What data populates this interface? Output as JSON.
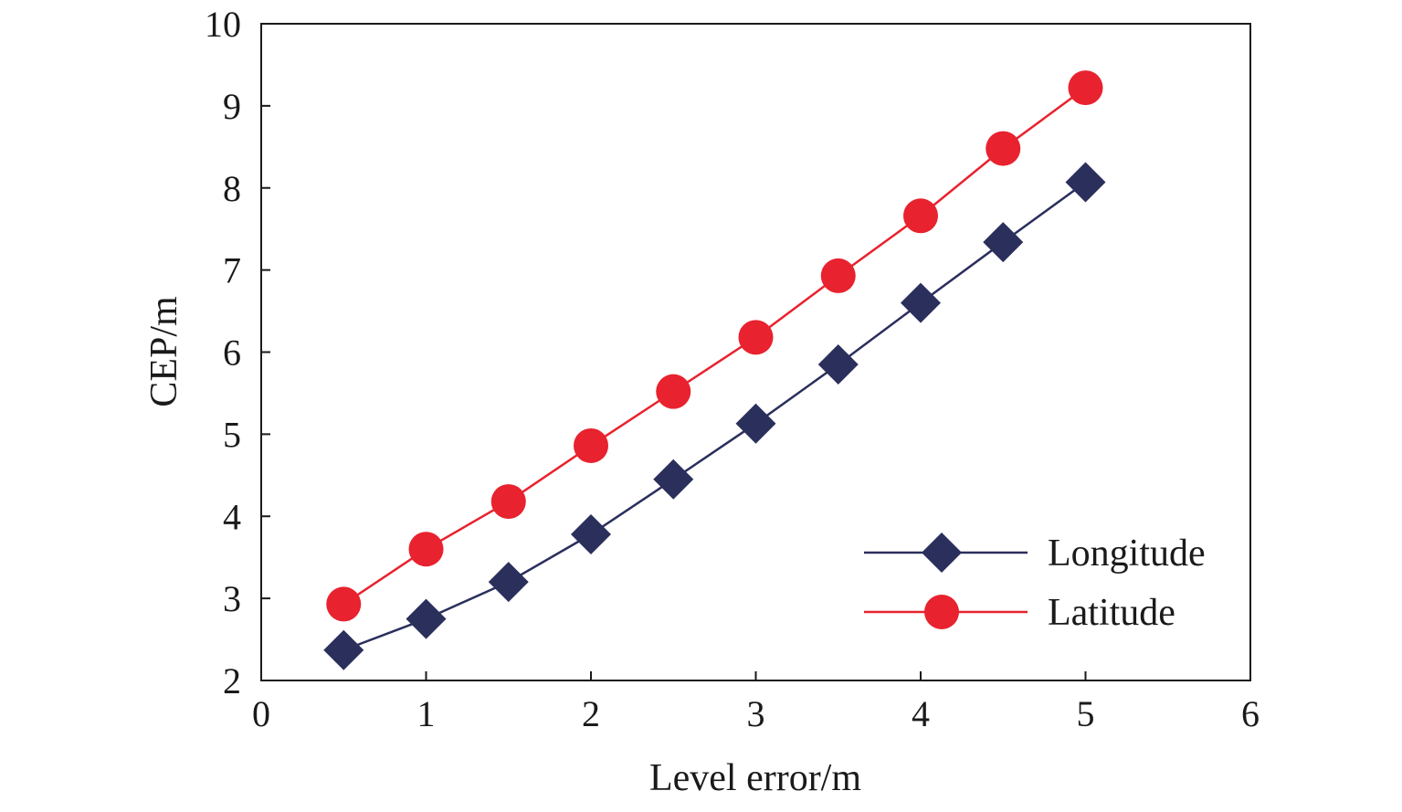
{
  "chart_data": {
    "type": "line",
    "title": "",
    "xlabel": "Level error/m",
    "ylabel": "CEP/m",
    "xlim": [
      0,
      6
    ],
    "ylim": [
      2,
      10
    ],
    "xticks": [
      "0",
      "1",
      "2",
      "3",
      "4",
      "5",
      "6"
    ],
    "yticks": [
      "2",
      "3",
      "4",
      "5",
      "6",
      "7",
      "8",
      "9",
      "10"
    ],
    "grid": false,
    "legend_position": "bottom-right",
    "series": [
      {
        "name": "Longitude",
        "color": "#2b2f5c",
        "marker": "diamond",
        "x": [
          0.5,
          1.0,
          1.5,
          2.0,
          2.5,
          3.0,
          3.5,
          4.0,
          4.5,
          5.0
        ],
        "y": [
          2.37,
          2.75,
          3.2,
          3.78,
          4.45,
          5.13,
          5.85,
          6.6,
          7.34,
          8.07
        ]
      },
      {
        "name": "Latitude",
        "color": "#e8222e",
        "marker": "circle",
        "x": [
          0.5,
          1.0,
          1.5,
          2.0,
          2.5,
          3.0,
          3.5,
          4.0,
          4.5,
          5.0
        ],
        "y": [
          2.93,
          3.6,
          4.18,
          4.86,
          5.52,
          6.18,
          6.93,
          7.66,
          8.48,
          9.22
        ]
      }
    ]
  }
}
